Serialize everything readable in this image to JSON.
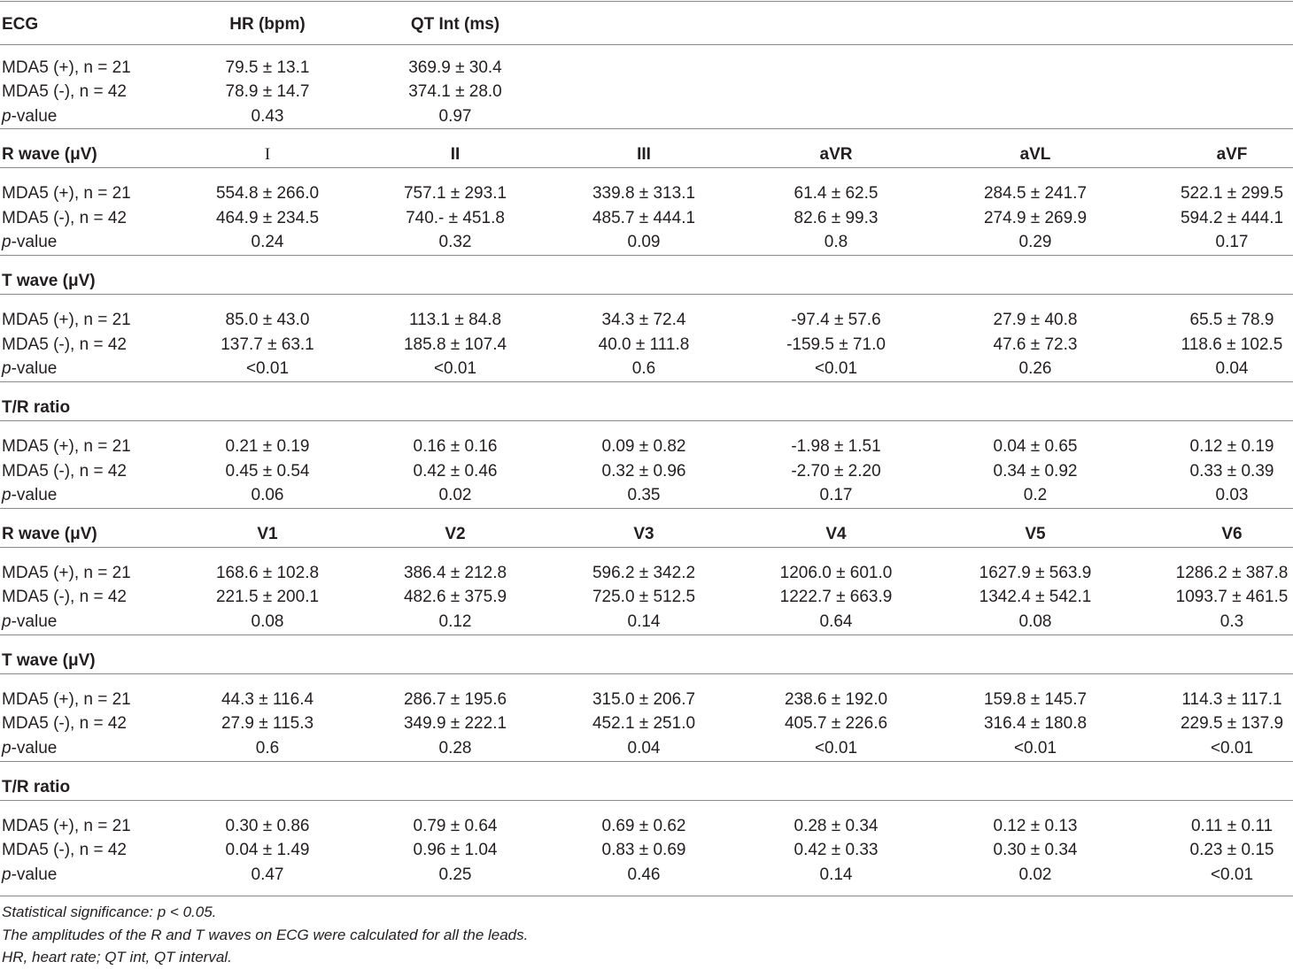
{
  "sections": [
    {
      "header": [
        "ECG",
        "HR (bpm)",
        "QT Int (ms)",
        "",
        "",
        "",
        ""
      ],
      "rows": [
        {
          "label": "MDA5 (+), n = 21",
          "cells": [
            "79.5 ± 13.1",
            "369.9 ± 30.4",
            "",
            "",
            "",
            ""
          ]
        },
        {
          "label": "MDA5 (-), n = 42",
          "cells": [
            "78.9 ± 14.7",
            "374.1 ± 28.0",
            "",
            "",
            "",
            ""
          ]
        },
        {
          "label_italic": "p",
          "label": "-value",
          "cells": [
            "0.43",
            "0.97",
            "",
            "",
            "",
            ""
          ]
        }
      ]
    },
    {
      "header": [
        "R wave (μV)",
        "I",
        "II",
        "III",
        "aVR",
        "aVL",
        "aVF"
      ],
      "rows": [
        {
          "label": "MDA5 (+), n = 21",
          "cells": [
            "554.8 ± 266.0",
            "757.1 ± 293.1",
            "339.8 ± 313.1",
            "61.4 ± 62.5",
            "284.5 ± 241.7",
            "522.1 ± 299.5"
          ]
        },
        {
          "label": "MDA5 (-), n = 42",
          "cells": [
            "464.9 ± 234.5",
            "740.- ± 451.8",
            "485.7 ± 444.1",
            "82.6 ± 99.3",
            "274.9 ± 269.9",
            "594.2 ± 444.1"
          ]
        },
        {
          "label_italic": "p",
          "label": "-value",
          "cells": [
            "0.24",
            "0.32",
            "0.09",
            "0.8",
            "0.29",
            "0.17"
          ]
        }
      ]
    },
    {
      "header": [
        "T wave (μV)",
        "",
        "",
        "",
        "",
        "",
        ""
      ],
      "rows": [
        {
          "label": "MDA5 (+), n = 21",
          "cells": [
            "85.0 ± 43.0",
            "113.1 ± 84.8",
            "34.3 ± 72.4",
            "-97.4 ± 57.6",
            "27.9 ± 40.8",
            "65.5 ± 78.9"
          ]
        },
        {
          "label": "MDA5 (-), n = 42",
          "cells": [
            "137.7 ± 63.1",
            "185.8 ± 107.4",
            "40.0 ± 111.8",
            "-159.5 ± 71.0",
            "47.6 ± 72.3",
            "118.6 ± 102.5"
          ]
        },
        {
          "label_italic": "p",
          "label": "-value",
          "cells": [
            "<0.01",
            "<0.01",
            "0.6",
            "<0.01",
            "0.26",
            "0.04"
          ]
        }
      ]
    },
    {
      "header": [
        "T/R ratio",
        "",
        "",
        "",
        "",
        "",
        ""
      ],
      "rows": [
        {
          "label": "MDA5 (+), n = 21",
          "cells": [
            "0.21 ± 0.19",
            "0.16 ± 0.16",
            "0.09 ± 0.82",
            "-1.98 ± 1.51",
            "0.04 ± 0.65",
            "0.12 ± 0.19"
          ]
        },
        {
          "label": "MDA5 (-), n = 42",
          "cells": [
            "0.45 ± 0.54",
            "0.42 ± 0.46",
            "0.32 ± 0.96",
            "-2.70 ± 2.20",
            "0.34 ± 0.92",
            "0.33 ± 0.39"
          ]
        },
        {
          "label_italic": "p",
          "label": "-value",
          "cells": [
            "0.06",
            "0.02",
            "0.35",
            "0.17",
            "0.2",
            "0.03"
          ]
        }
      ]
    },
    {
      "header": [
        "R wave (μV)",
        "V1",
        "V2",
        "V3",
        "V4",
        "V5",
        "V6"
      ],
      "rows": [
        {
          "label": "MDA5 (+), n = 21",
          "cells": [
            "168.6 ± 102.8",
            "386.4 ± 212.8",
            "596.2 ± 342.2",
            "1206.0 ± 601.0",
            "1627.9 ± 563.9",
            "1286.2 ± 387.8"
          ]
        },
        {
          "label": "MDA5 (-), n = 42",
          "cells": [
            "221.5 ± 200.1",
            "482.6 ± 375.9",
            "725.0 ± 512.5",
            "1222.7 ± 663.9",
            "1342.4 ± 542.1",
            "1093.7 ± 461.5"
          ]
        },
        {
          "label_italic": "p",
          "label": "-value",
          "cells": [
            "0.08",
            "0.12",
            "0.14",
            "0.64",
            "0.08",
            "0.3"
          ]
        }
      ]
    },
    {
      "header": [
        "T wave (μV)",
        "",
        "",
        "",
        "",
        "",
        ""
      ],
      "rows": [
        {
          "label": "MDA5 (+), n = 21",
          "cells": [
            "44.3 ± 116.4",
            "286.7 ± 195.6",
            "315.0 ± 206.7",
            "238.6 ± 192.0",
            "159.8 ± 145.7",
            "114.3 ± 117.1"
          ]
        },
        {
          "label": "MDA5 (-), n = 42",
          "cells": [
            "27.9 ± 115.3",
            "349.9 ± 222.1",
            "452.1 ± 251.0",
            "405.7 ± 226.6",
            "316.4 ± 180.8",
            "229.5 ± 137.9"
          ]
        },
        {
          "label_italic": "p",
          "label": "-value",
          "cells": [
            "0.6",
            "0.28",
            "0.04",
            "<0.01",
            "<0.01",
            "<0.01"
          ]
        }
      ]
    },
    {
      "header": [
        "T/R ratio",
        "",
        "",
        "",
        "",
        "",
        ""
      ],
      "rows": [
        {
          "label": "MDA5 (+), n = 21",
          "cells": [
            "0.30 ± 0.86",
            "0.79 ± 0.64",
            "0.69 ± 0.62",
            "0.28 ± 0.34",
            "0.12 ± 0.13",
            "0.11 ± 0.11"
          ]
        },
        {
          "label": "MDA5 (-), n = 42",
          "cells": [
            "0.04 ± 1.49",
            "0.96 ± 1.04",
            "0.83 ± 0.69",
            "0.42 ± 0.33",
            "0.30 ± 0.34",
            "0.23 ± 0.15"
          ]
        },
        {
          "label_italic": "p",
          "label": "-value",
          "cells": [
            "0.47",
            "0.25",
            "0.46",
            "0.14",
            "0.02",
            "<0.01"
          ]
        }
      ]
    }
  ],
  "notes": [
    "Statistical significance: p < 0.05.",
    "The amplitudes of the R and T waves on ECG were calculated for all the leads.",
    "HR, heart rate; QT int, QT interval."
  ],
  "colors": {
    "text": "#231f20",
    "rule": "#8a8a8a",
    "background": "#ffffff"
  }
}
